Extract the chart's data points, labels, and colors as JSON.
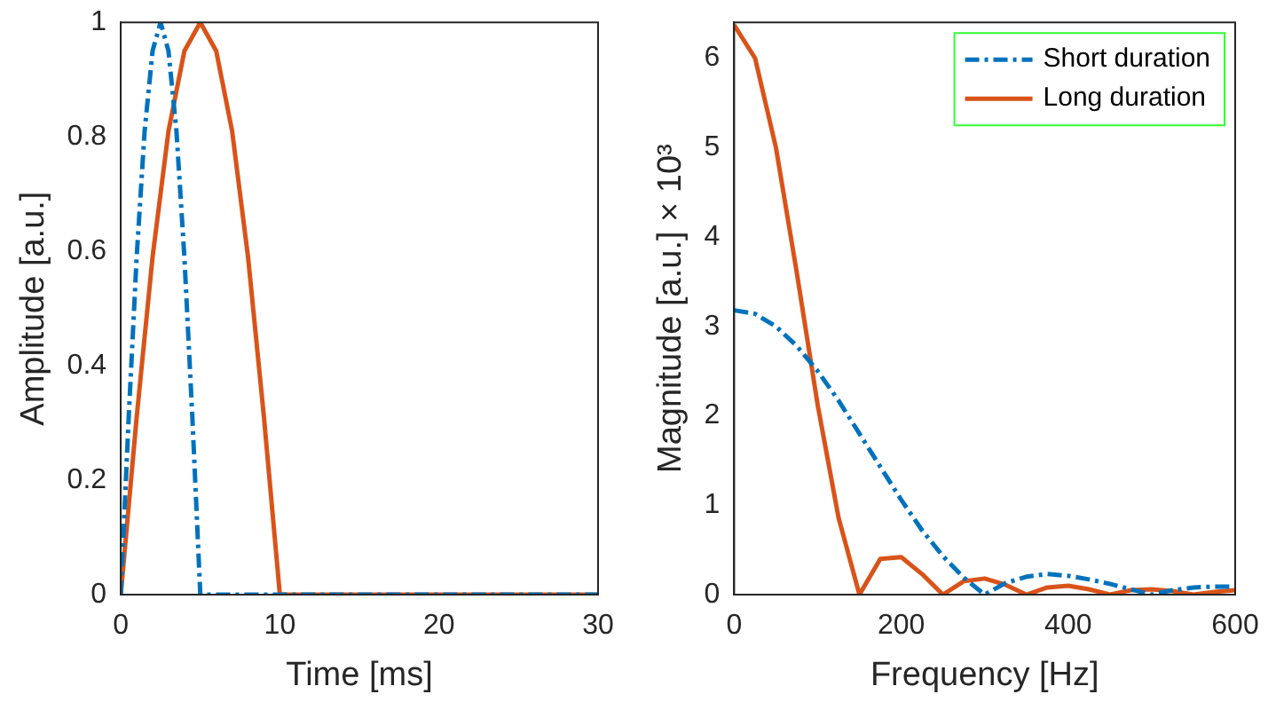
{
  "chart_data": [
    {
      "type": "line",
      "xlabel": "Time [ms]",
      "ylabel": "Amplitude [a.u.]",
      "xlim": [
        0,
        30
      ],
      "xticks": [
        0,
        10,
        20,
        30
      ],
      "ylim": [
        0,
        1
      ],
      "yticks": [
        0,
        0.2,
        0.4,
        0.6,
        0.8,
        1
      ],
      "grid": false,
      "legend": false,
      "marker": "none",
      "series": [
        {
          "color": "#0072bd",
          "line_style": "dashed",
          "x": [
            0,
            0.5,
            1,
            1.5,
            2,
            2.5,
            3,
            3.5,
            4,
            4.5,
            5,
            10,
            30
          ],
          "values": [
            0,
            0.31,
            0.59,
            0.81,
            0.95,
            1,
            0.95,
            0.81,
            0.59,
            0.31,
            0,
            0,
            0
          ]
        },
        {
          "color": "#d95319",
          "line_style": "solid",
          "x": [
            0,
            1,
            2,
            3,
            4,
            5,
            6,
            7,
            8,
            9,
            10,
            30
          ],
          "values": [
            0,
            0.31,
            0.59,
            0.81,
            0.95,
            1,
            0.95,
            0.81,
            0.59,
            0.31,
            0,
            0
          ]
        }
      ]
    },
    {
      "type": "line",
      "xlabel": "Frequency [Hz]",
      "ylabel": "Magnitude [a.u.] × 10³",
      "xlim": [
        0,
        600
      ],
      "xticks": [
        0,
        200,
        400,
        600
      ],
      "ylim": [
        0,
        6.4
      ],
      "yticks": [
        0,
        1,
        2,
        3,
        4,
        5,
        6
      ],
      "grid": false,
      "legend": "top right",
      "marker": "none",
      "series": [
        {
          "name": "Short duration",
          "color": "#0072bd",
          "line_style": "dashed",
          "x": [
            0,
            25,
            50,
            75,
            100,
            125,
            150,
            175,
            200,
            225,
            250,
            275,
            300,
            325,
            350,
            375,
            400,
            425,
            450,
            475,
            500,
            525,
            550,
            575,
            600
          ],
          "values": [
            3.18,
            3.14,
            3.0,
            2.78,
            2.5,
            2.17,
            1.8,
            1.43,
            1.06,
            0.72,
            0.43,
            0.19,
            0,
            0.13,
            0.2,
            0.23,
            0.21,
            0.17,
            0.12,
            0.06,
            0,
            0.05,
            0.08,
            0.09,
            0.09
          ]
        },
        {
          "name": "Long duration",
          "color": "#d95319",
          "line_style": "solid",
          "x": [
            0,
            25,
            50,
            75,
            100,
            125,
            150,
            175,
            200,
            225,
            250,
            275,
            300,
            325,
            350,
            375,
            400,
            425,
            450,
            475,
            500,
            525,
            550,
            575,
            600
          ],
          "values": [
            6.37,
            6.0,
            5.0,
            3.6,
            2.12,
            0.86,
            0,
            0.4,
            0.42,
            0.23,
            0,
            0.15,
            0.18,
            0.11,
            0,
            0.08,
            0.1,
            0.06,
            0,
            0.05,
            0.06,
            0.04,
            0,
            0.03,
            0.05
          ]
        }
      ]
    }
  ]
}
